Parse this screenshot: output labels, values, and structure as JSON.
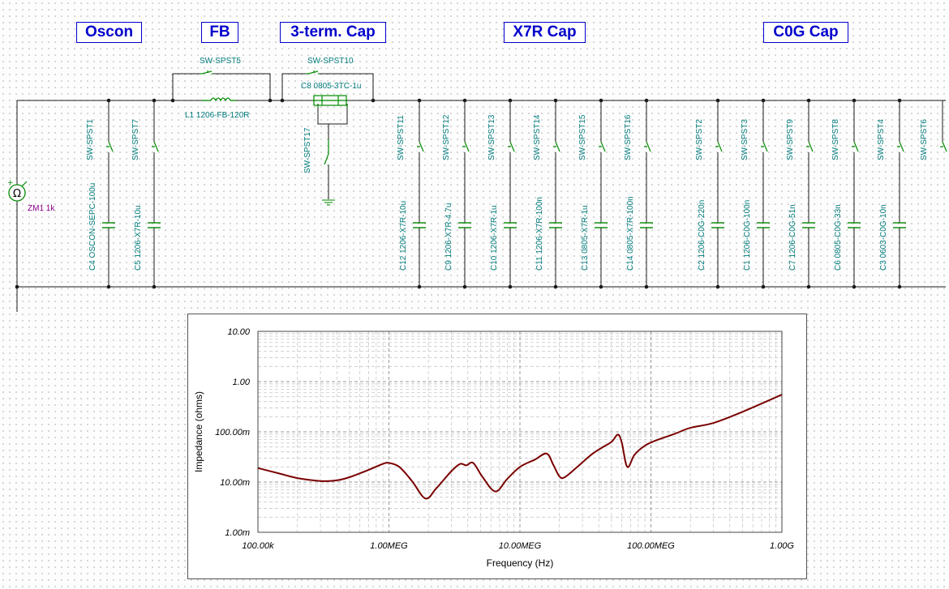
{
  "headers": {
    "oscon": "Oscon",
    "fb": "FB",
    "three_term": "3-term. Cap",
    "x7r": "X7R Cap",
    "c0g": "C0G Cap"
  },
  "meter": {
    "label": "ZM1 1k"
  },
  "bypass": {
    "sw_fb": "SW-SPST5",
    "sw_3t": "SW-SPST10",
    "inductor": "L1 1206-FB-120R",
    "cap_3t": "C8 0805-3TC-1u",
    "sw_3t_gnd": "SW-SPST17"
  },
  "branches": [
    {
      "switch": "SW-SPST1",
      "cap": "C4 OSCON-SEPC-100u"
    },
    {
      "switch": "SW-SPST7",
      "cap": "C5 1206-X7R-10u"
    },
    {
      "switch": "SW-SPST11",
      "cap": "C12 1206-X7R-10u"
    },
    {
      "switch": "SW-SPST12",
      "cap": "C9 1206-X7R-4.7u"
    },
    {
      "switch": "SW-SPST13",
      "cap": "C10 1206-X7R-1u"
    },
    {
      "switch": "SW-SPST14",
      "cap": "C11 1206-X7R-100n"
    },
    {
      "switch": "SW-SPST15",
      "cap": "C13 0805-X7R-1u"
    },
    {
      "switch": "SW-SPST16",
      "cap": "C14 0805-X7R-100n"
    },
    {
      "switch": "SW-SPST2",
      "cap": "C2 1206-C0G-220n"
    },
    {
      "switch": "SW-SPST3",
      "cap": "C1 1206-C0G-100n"
    },
    {
      "switch": "SW-SPST9",
      "cap": "C7 1206-C0G-51n"
    },
    {
      "switch": "SW-SPST8",
      "cap": "C6 0805-C0G-33n"
    },
    {
      "switch": "SW-SPST4",
      "cap": "C3 0603-C0G-10n"
    },
    {
      "switch": "SW-SPST6",
      "cap": ""
    }
  ],
  "colors": {
    "wire": "#1a1a1a",
    "component": "#008a00",
    "label": "#007b7b",
    "header": "#0000cc",
    "meter_label": "#8b008b",
    "curve": "#7a0000"
  },
  "chart_data": {
    "type": "line",
    "xlabel": "Frequency (Hz)",
    "ylabel": "Impedance (ohms)",
    "x_scale": "log",
    "y_scale": "log",
    "xlim": [
      100000,
      1000000000
    ],
    "ylim": [
      0.001,
      10
    ],
    "grid": true,
    "x_tick_values": [
      100000,
      1000000,
      10000000,
      100000000,
      1000000000
    ],
    "x_tick_labels": [
      "100.00k",
      "1.00MEG",
      "10.00MEG",
      "100.00MEG",
      "1.00G"
    ],
    "y_tick_values": [
      0.001,
      0.01,
      0.1,
      1,
      10
    ],
    "y_tick_labels": [
      "1.00m",
      "10.00m",
      "100.00m",
      "1.00",
      "10.00"
    ],
    "series": [
      {
        "points": [
          [
            100000,
            0.019
          ],
          [
            150000,
            0.0145
          ],
          [
            200000,
            0.012
          ],
          [
            300000,
            0.0105
          ],
          [
            400000,
            0.0108
          ],
          [
            500000,
            0.0125
          ],
          [
            700000,
            0.0175
          ],
          [
            900000,
            0.023
          ],
          [
            1000000,
            0.024
          ],
          [
            1200000,
            0.02
          ],
          [
            1500000,
            0.0105
          ],
          [
            1900000,
            0.0047
          ],
          [
            2300000,
            0.0075
          ],
          [
            3000000,
            0.0165
          ],
          [
            3500000,
            0.023
          ],
          [
            3900000,
            0.0215
          ],
          [
            4400000,
            0.024
          ],
          [
            5200000,
            0.0125
          ],
          [
            6500000,
            0.0065
          ],
          [
            8000000,
            0.0115
          ],
          [
            10000000,
            0.02
          ],
          [
            13000000,
            0.028
          ],
          [
            16000000,
            0.037
          ],
          [
            18000000,
            0.022
          ],
          [
            20000000,
            0.013
          ],
          [
            22000000,
            0.0125
          ],
          [
            28000000,
            0.021
          ],
          [
            35000000,
            0.035
          ],
          [
            42000000,
            0.048
          ],
          [
            50000000,
            0.063
          ],
          [
            56000000,
            0.088
          ],
          [
            60000000,
            0.06
          ],
          [
            66000000,
            0.02
          ],
          [
            75000000,
            0.035
          ],
          [
            90000000,
            0.053
          ],
          [
            110000000,
            0.068
          ],
          [
            150000000,
            0.09
          ],
          [
            200000000,
            0.12
          ],
          [
            300000000,
            0.15
          ],
          [
            500000000,
            0.25
          ],
          [
            1000000000,
            0.55
          ]
        ]
      }
    ]
  }
}
